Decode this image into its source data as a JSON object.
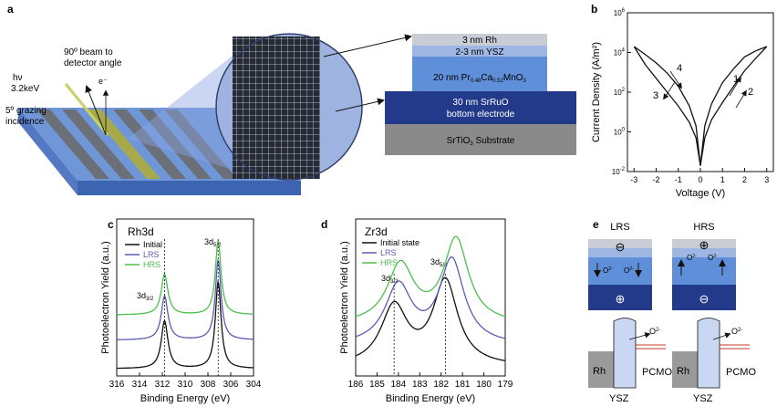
{
  "panels": {
    "a": {
      "letter": "a",
      "beam_line1": "hν",
      "beam_line2": "3.2keV",
      "detector_line1": "90º beam to",
      "detector_line2": "detector angle",
      "electron": "e⁻",
      "grazing_line1": "5º grazing",
      "grazing_line2": "incidence",
      "stack": [
        {
          "text": "3 nm Rh",
          "color": "#c8ccd4"
        },
        {
          "text": "2-3 nm YSZ",
          "color": "#9db7e2"
        },
        {
          "text": "20 nm Pr0.48Ca0.52MnO3",
          "color": "#5e8fd8"
        },
        {
          "text": "30 nm SrRuO / bottom electrode",
          "color": "#233a8a"
        },
        {
          "text": "SrTiO3 Substrate",
          "color": "#8a8a8a"
        }
      ]
    },
    "b": {
      "letter": "b",
      "xlabel": "Voltage (V)",
      "ylabel": "Current Density (A/m²)",
      "x_ticks": [
        "-3",
        "-2",
        "-1",
        "0",
        "1",
        "2",
        "3"
      ],
      "y_ticks": [
        "10-2",
        "100",
        "102",
        "104",
        "106"
      ],
      "arrow_labels": [
        "1",
        "2",
        "3",
        "4"
      ]
    },
    "c": {
      "letter": "c",
      "element": "Rh3d",
      "legend": [
        "Initial",
        "LRS",
        "HRS"
      ],
      "peak_labels": [
        "3d3/2",
        "3d5/2"
      ],
      "xlabel": "Binding Energy (eV)",
      "ylabel": "Photoelectron Yield (a.u.)",
      "x_ticks": [
        "316",
        "314",
        "312",
        "310",
        "308",
        "306",
        "304"
      ]
    },
    "d": {
      "letter": "d",
      "element": "Zr3d",
      "legend": [
        "Initial state",
        "LRS",
        "HRS"
      ],
      "peak_labels": [
        "3d3/2",
        "3d5/2"
      ],
      "xlabel": "Binding Energy (eV)",
      "x_ticks": [
        "186",
        "185",
        "184",
        "183",
        "182",
        "181",
        "180",
        "179"
      ]
    },
    "e": {
      "letter": "e",
      "states": [
        "LRS",
        "HRS"
      ],
      "charge_top": [
        "⊖",
        "⊕"
      ],
      "charge_bottom": [
        "⊕",
        "⊖"
      ],
      "ion": "O2-",
      "band_labels": [
        "Rh",
        "PCMO",
        "YSZ"
      ]
    }
  },
  "colors": {
    "initial": "#111111",
    "lrs": "#5b5bb5",
    "hrs": "#4cbf4c",
    "rh_layer": "#c8ccd4",
    "ysz_layer": "#9db7e2",
    "pcmo_layer": "#5e8fd8",
    "sro_layer": "#233a8a",
    "substrate": "#8a8a8a"
  },
  "chart_data": [
    {
      "panel": "b",
      "type": "line",
      "xlabel": "Voltage (V)",
      "ylabel": "Current Density (A/m²)",
      "xlim": [
        -3.3,
        3.3
      ],
      "ylim": [
        0.01,
        1000000
      ],
      "yscale": "log",
      "series": [
        {
          "x": [
            -3,
            -2.5,
            -2,
            -1.5,
            -1,
            -0.5,
            -0.2,
            0,
            0.2,
            0.5,
            1,
            1.5,
            2,
            2.5,
            3
          ],
          "y": [
            20000,
            8000,
            3000,
            900,
            200,
            20,
            2,
            0.02,
            2,
            25,
            300,
            1500,
            6000,
            12000,
            20000
          ]
        },
        {
          "x": [
            -3,
            -2.5,
            -2,
            -1.5,
            -1,
            -0.5,
            -0.2,
            0,
            0.2,
            0.5,
            1,
            1.5,
            2,
            2.5,
            3
          ],
          "y": [
            20000,
            2500,
            500,
            100,
            20,
            3,
            0.5,
            0.02,
            0.5,
            4,
            30,
            200,
            1200,
            5000,
            20000
          ]
        }
      ]
    },
    {
      "panel": "c",
      "type": "line",
      "xlabel": "Binding Energy (eV)",
      "ylabel": "Photoelectron Yield (a.u.)",
      "xlim": [
        316,
        304
      ],
      "peaks_eV": [
        311.8,
        307.1
      ],
      "series": [
        {
          "name": "Initial",
          "offset": 0,
          "scale": 1.0
        },
        {
          "name": "LRS",
          "offset": 0.33,
          "scale": 0.92
        },
        {
          "name": "HRS",
          "offset": 0.62,
          "scale": 0.85
        }
      ]
    },
    {
      "panel": "d",
      "type": "line",
      "xlabel": "Binding Energy (eV)",
      "ylabel": "Photoelectron Yield (a.u.)",
      "xlim": [
        186,
        179
      ],
      "series": [
        {
          "name": "Initial state",
          "offset": 0,
          "peaks_eV": [
            184.2,
            181.8
          ]
        },
        {
          "name": "LRS",
          "offset": 0.25,
          "peaks_eV": [
            184.0,
            181.5
          ]
        },
        {
          "name": "HRS",
          "offset": 0.5,
          "peaks_eV": [
            183.9,
            181.3
          ]
        }
      ]
    }
  ]
}
